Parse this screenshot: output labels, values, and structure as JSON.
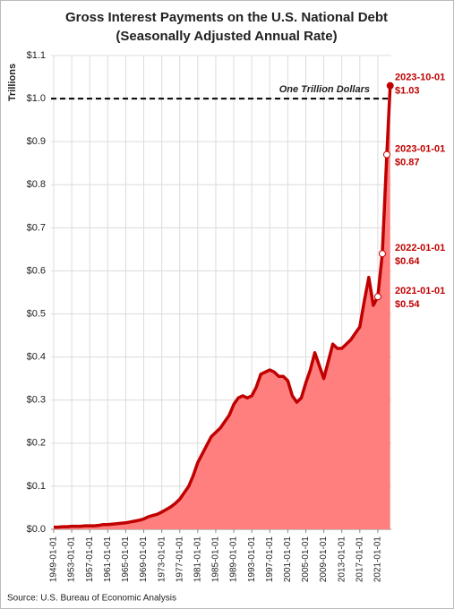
{
  "chart_data": {
    "type": "area",
    "title": "Gross Interest Payments on the U.S. National Debt",
    "subtitle": "(Seasonally Adjusted Annual Rate)",
    "y_label": "Trillions",
    "source": "Source: U.S. Bureau of Economic Analysis",
    "reference_line": {
      "value": 1.0,
      "label": "One Trillion Dollars"
    },
    "series": [
      {
        "name": "Gross Interest Payments",
        "color": "#c00000",
        "fill": "#ff7f7f",
        "x": [
          "1949-01-01",
          "1950-01-01",
          "1951-01-01",
          "1952-01-01",
          "1953-01-01",
          "1954-01-01",
          "1955-01-01",
          "1956-01-01",
          "1957-01-01",
          "1958-01-01",
          "1959-01-01",
          "1960-01-01",
          "1961-01-01",
          "1962-01-01",
          "1963-01-01",
          "1964-01-01",
          "1965-01-01",
          "1966-01-01",
          "1967-01-01",
          "1968-01-01",
          "1969-01-01",
          "1970-01-01",
          "1971-01-01",
          "1972-01-01",
          "1973-01-01",
          "1974-01-01",
          "1975-01-01",
          "1976-01-01",
          "1977-01-01",
          "1978-01-01",
          "1979-01-01",
          "1980-01-01",
          "1981-01-01",
          "1982-01-01",
          "1983-01-01",
          "1984-01-01",
          "1985-01-01",
          "1986-01-01",
          "1987-01-01",
          "1988-01-01",
          "1989-01-01",
          "1990-01-01",
          "1991-01-01",
          "1992-01-01",
          "1993-01-01",
          "1994-01-01",
          "1995-01-01",
          "1996-01-01",
          "1997-01-01",
          "1998-01-01",
          "1999-01-01",
          "2000-01-01",
          "2001-01-01",
          "2002-01-01",
          "2003-01-01",
          "2004-01-01",
          "2005-01-01",
          "2006-01-01",
          "2007-01-01",
          "2008-01-01",
          "2009-01-01",
          "2010-01-01",
          "2011-01-01",
          "2012-01-01",
          "2013-01-01",
          "2014-01-01",
          "2015-01-01",
          "2016-01-01",
          "2017-01-01",
          "2018-01-01",
          "2019-01-01",
          "2020-01-01",
          "2021-01-01",
          "2022-01-01",
          "2023-01-01",
          "2023-10-01"
        ],
        "values": [
          0.005,
          0.005,
          0.006,
          0.006,
          0.007,
          0.007,
          0.007,
          0.008,
          0.008,
          0.008,
          0.009,
          0.011,
          0.011,
          0.012,
          0.013,
          0.014,
          0.015,
          0.017,
          0.019,
          0.021,
          0.024,
          0.029,
          0.032,
          0.035,
          0.04,
          0.046,
          0.052,
          0.06,
          0.07,
          0.085,
          0.1,
          0.125,
          0.155,
          0.175,
          0.195,
          0.215,
          0.225,
          0.235,
          0.25,
          0.265,
          0.29,
          0.305,
          0.31,
          0.305,
          0.31,
          0.33,
          0.36,
          0.365,
          0.37,
          0.365,
          0.355,
          0.355,
          0.345,
          0.31,
          0.295,
          0.305,
          0.34,
          0.37,
          0.41,
          0.38,
          0.35,
          0.39,
          0.43,
          0.42,
          0.42,
          0.43,
          0.44,
          0.455,
          0.47,
          0.53,
          0.585,
          0.52,
          0.54,
          0.64,
          0.87,
          1.03
        ],
        "value_labels": [
          null,
          null,
          null,
          null,
          null,
          null,
          null,
          null,
          null,
          null,
          null,
          null,
          null,
          null,
          null,
          null,
          null,
          null,
          null,
          null,
          null,
          null,
          null,
          null,
          null,
          null,
          null,
          null,
          null,
          null,
          null,
          null,
          null,
          null,
          null,
          null,
          null,
          null,
          null,
          null,
          null,
          null,
          null,
          null,
          null,
          null,
          null,
          null,
          null,
          null,
          null,
          null,
          null,
          null,
          null,
          null,
          null,
          null,
          null,
          null,
          null,
          null,
          null,
          null,
          null,
          null,
          null,
          null,
          null,
          null,
          null,
          null,
          "$0.54",
          "$0.64",
          "$0.87",
          "$1.03"
        ]
      }
    ],
    "xlim": [
      "1949-01-01",
      "2024-01-01"
    ],
    "xticks": [
      "1949-01-01",
      "1953-01-01",
      "1957-01-01",
      "1961-01-01",
      "1965-01-01",
      "1969-01-01",
      "1973-01-01",
      "1977-01-01",
      "1981-01-01",
      "1985-01-01",
      "1989-01-01",
      "1993-01-01",
      "1997-01-01",
      "2001-01-01",
      "2005-01-01",
      "2009-01-01",
      "2013-01-01",
      "2017-01-01",
      "2021-01-01"
    ],
    "ylim": [
      0,
      1.1
    ],
    "yticks": [
      {
        "value": 0,
        "label": "$0.0"
      },
      {
        "value": 0.1,
        "label": "$0.1"
      },
      {
        "value": 0.2,
        "label": "$0.2"
      },
      {
        "value": 0.3,
        "label": "$0.3"
      },
      {
        "value": 0.4,
        "label": "$0.4"
      },
      {
        "value": 0.5,
        "label": "$0.5"
      },
      {
        "value": 0.6,
        "label": "$0.6"
      },
      {
        "value": 0.7,
        "label": "$0.7"
      },
      {
        "value": 0.8,
        "label": "$0.8"
      },
      {
        "value": 0.9,
        "label": "$0.9"
      },
      {
        "value": 1.0,
        "label": "$1.0"
      },
      {
        "value": 1.1,
        "label": "$1.1"
      }
    ],
    "grid": true
  }
}
